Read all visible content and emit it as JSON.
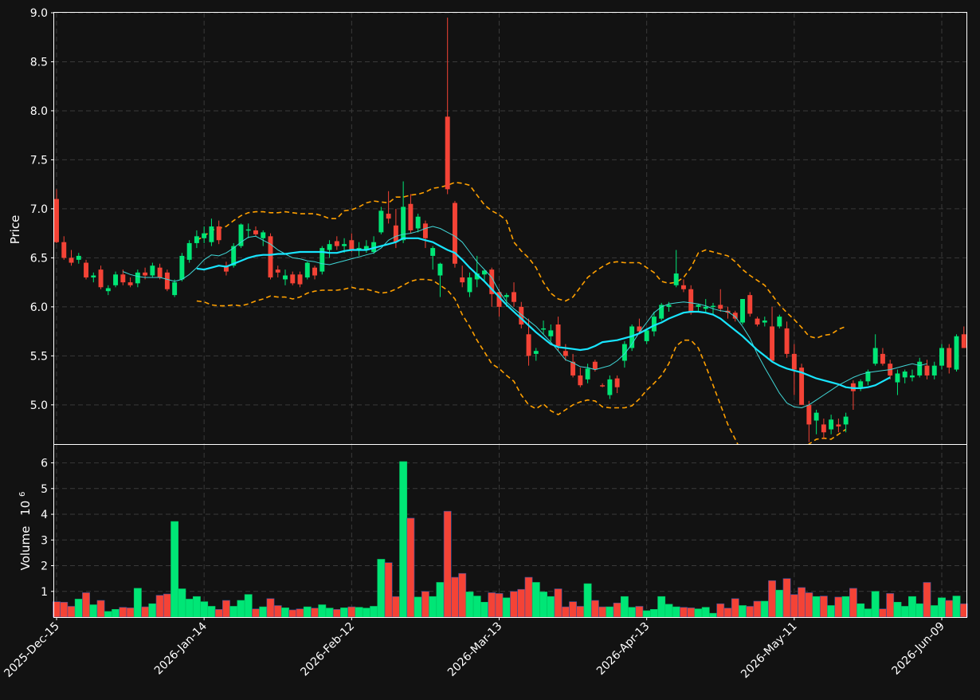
{
  "theme": {
    "background": "#121212",
    "panel_border": "#ffffff",
    "grid": "#3a3a3a",
    "up_color": "#00e676",
    "down_color": "#f44336",
    "ma_fast_color": "#40d6d6",
    "ma_slow_color": "#18e5ff",
    "band_color": "#ffa000"
  },
  "chart_data": {
    "type": "candlestick",
    "price_panel": {
      "ylabel": "Price",
      "ylim": [
        4.6,
        9.0
      ],
      "yticks": [
        "5.0",
        "5.5",
        "6.0",
        "6.5",
        "7.0",
        "7.5",
        "8.0",
        "8.5",
        "9.0"
      ],
      "grid": true
    },
    "volume_panel": {
      "ylabel": "Volume",
      "ylabel_exponent": "10",
      "ylabel_power": "6",
      "ylim": [
        0,
        6.7
      ],
      "yticks": [
        "1",
        "2",
        "3",
        "4",
        "5",
        "6"
      ],
      "unit_multiplier": 1000000,
      "grid": true
    },
    "x_axis": {
      "tick_labels": [
        "2025-Dec-15",
        "2026-Jan-14",
        "2026-Feb-12",
        "2026-Mar-13",
        "2026-Apr-13",
        "2026-May-11",
        "2026-Jun-09"
      ],
      "tick_indices": [
        0,
        20,
        40,
        60,
        80,
        100,
        120
      ]
    },
    "series_types": {
      "candles": "OHLC candlesticks (green = close above open, red = close below open)",
      "ma_fast": "thin cyan moving average",
      "ma_slow": "thick cyan moving average",
      "bands": "orange dashed upper and lower bands"
    },
    "ohlc": [
      [
        7.1,
        7.2,
        6.65,
        6.66
      ],
      [
        6.66,
        6.72,
        6.48,
        6.5
      ],
      [
        6.5,
        6.58,
        6.42,
        6.45
      ],
      [
        6.48,
        6.55,
        6.44,
        6.52
      ],
      [
        6.45,
        6.48,
        6.28,
        6.3
      ],
      [
        6.3,
        6.35,
        6.25,
        6.32
      ],
      [
        6.38,
        6.42,
        6.18,
        6.2
      ],
      [
        6.16,
        6.22,
        6.12,
        6.19
      ],
      [
        6.22,
        6.36,
        6.2,
        6.33
      ],
      [
        6.33,
        6.38,
        6.22,
        6.25
      ],
      [
        6.25,
        6.3,
        6.2,
        6.22
      ],
      [
        6.24,
        6.38,
        6.2,
        6.35
      ],
      [
        6.35,
        6.4,
        6.28,
        6.32
      ],
      [
        6.32,
        6.45,
        6.3,
        6.42
      ],
      [
        6.4,
        6.44,
        6.28,
        6.3
      ],
      [
        6.35,
        6.38,
        6.16,
        6.18
      ],
      [
        6.12,
        6.28,
        6.1,
        6.25
      ],
      [
        6.28,
        6.55,
        6.26,
        6.52
      ],
      [
        6.48,
        6.68,
        6.45,
        6.65
      ],
      [
        6.65,
        6.78,
        6.6,
        6.72
      ],
      [
        6.7,
        6.82,
        6.65,
        6.75
      ],
      [
        6.66,
        6.9,
        6.62,
        6.82
      ],
      [
        6.82,
        6.88,
        6.64,
        6.68
      ],
      [
        6.42,
        6.46,
        6.32,
        6.36
      ],
      [
        6.42,
        6.65,
        6.4,
        6.62
      ],
      [
        6.62,
        6.85,
        6.6,
        6.84
      ],
      [
        6.78,
        6.85,
        6.7,
        6.79
      ],
      [
        6.78,
        6.82,
        6.72,
        6.74
      ],
      [
        6.7,
        6.78,
        6.62,
        6.76
      ],
      [
        6.72,
        6.75,
        6.28,
        6.3
      ],
      [
        6.38,
        6.42,
        6.3,
        6.35
      ],
      [
        6.28,
        6.38,
        6.22,
        6.32
      ],
      [
        6.33,
        6.36,
        6.22,
        6.24
      ],
      [
        6.33,
        6.36,
        6.2,
        6.23
      ],
      [
        6.3,
        6.46,
        6.28,
        6.45
      ],
      [
        6.4,
        6.42,
        6.28,
        6.32
      ],
      [
        6.36,
        6.62,
        6.33,
        6.6
      ],
      [
        6.58,
        6.68,
        6.5,
        6.64
      ],
      [
        6.67,
        6.72,
        6.58,
        6.62
      ],
      [
        6.62,
        6.7,
        6.55,
        6.64
      ],
      [
        6.68,
        6.75,
        6.56,
        6.58
      ],
      [
        6.58,
        6.66,
        6.52,
        6.6
      ],
      [
        6.58,
        6.68,
        6.55,
        6.62
      ],
      [
        6.56,
        6.72,
        6.54,
        6.66
      ],
      [
        6.76,
        7.02,
        6.74,
        6.98
      ],
      [
        6.95,
        7.18,
        6.85,
        6.9
      ],
      [
        6.83,
        7.0,
        6.6,
        6.66
      ],
      [
        6.68,
        7.28,
        6.65,
        7.02
      ],
      [
        7.05,
        7.15,
        6.75,
        6.78
      ],
      [
        6.8,
        6.95,
        6.76,
        6.92
      ],
      [
        6.85,
        6.88,
        6.6,
        6.7
      ],
      [
        6.52,
        6.62,
        6.38,
        6.6
      ],
      [
        6.32,
        6.45,
        6.1,
        6.44
      ],
      [
        7.94,
        8.95,
        7.15,
        7.2
      ],
      [
        7.06,
        7.08,
        6.4,
        6.44
      ],
      [
        6.3,
        6.42,
        6.2,
        6.25
      ],
      [
        6.15,
        6.35,
        6.1,
        6.3
      ],
      [
        6.28,
        6.52,
        6.2,
        6.34
      ],
      [
        6.33,
        6.38,
        6.25,
        6.37
      ],
      [
        6.38,
        6.4,
        6.0,
        6.13
      ],
      [
        6.15,
        6.18,
        5.9,
        6.0
      ],
      [
        6.1,
        6.14,
        6.0,
        6.12
      ],
      [
        6.15,
        6.25,
        6.0,
        6.05
      ],
      [
        6.0,
        6.05,
        5.78,
        5.82
      ],
      [
        5.72,
        5.88,
        5.4,
        5.5
      ],
      [
        5.52,
        5.58,
        5.45,
        5.55
      ],
      [
        5.78,
        5.86,
        5.72,
        5.78
      ],
      [
        5.7,
        5.82,
        5.65,
        5.76
      ],
      [
        5.82,
        5.9,
        5.55,
        5.6
      ],
      [
        5.55,
        5.62,
        5.45,
        5.5
      ],
      [
        5.44,
        5.52,
        5.28,
        5.3
      ],
      [
        5.3,
        5.38,
        5.18,
        5.2
      ],
      [
        5.26,
        5.42,
        5.22,
        5.37
      ],
      [
        5.44,
        5.46,
        5.34,
        5.36
      ],
      [
        5.2,
        5.22,
        5.18,
        5.19
      ],
      [
        5.1,
        5.3,
        5.06,
        5.26
      ],
      [
        5.27,
        5.3,
        5.12,
        5.18
      ],
      [
        5.45,
        5.65,
        5.38,
        5.62
      ],
      [
        5.58,
        5.82,
        5.55,
        5.8
      ],
      [
        5.8,
        5.88,
        5.72,
        5.75
      ],
      [
        5.65,
        5.78,
        5.62,
        5.76
      ],
      [
        5.75,
        5.95,
        5.7,
        5.9
      ],
      [
        5.88,
        6.04,
        5.86,
        6.02
      ],
      [
        6.0,
        6.05,
        5.95,
        6.02
      ],
      [
        6.22,
        6.58,
        6.2,
        6.34
      ],
      [
        6.22,
        6.28,
        6.15,
        6.18
      ],
      [
        6.18,
        6.22,
        5.92,
        5.94
      ],
      [
        6.0,
        6.03,
        5.95,
        6.02
      ],
      [
        5.98,
        6.08,
        5.94,
        6.0
      ],
      [
        6.0,
        6.04,
        5.92,
        6.01
      ],
      [
        6.02,
        6.18,
        5.95,
        5.98
      ],
      [
        5.96,
        6.0,
        5.88,
        5.94
      ],
      [
        5.94,
        5.96,
        5.85,
        5.88
      ],
      [
        5.84,
        6.08,
        5.82,
        6.08
      ],
      [
        6.12,
        6.15,
        5.9,
        5.93
      ],
      [
        5.88,
        5.9,
        5.8,
        5.82
      ],
      [
        5.84,
        5.9,
        5.8,
        5.86
      ],
      [
        5.8,
        6.0,
        5.45,
        5.45
      ],
      [
        5.8,
        5.92,
        5.78,
        5.9
      ],
      [
        5.78,
        5.85,
        5.48,
        5.52
      ],
      [
        5.52,
        5.62,
        5.1,
        5.36
      ],
      [
        5.38,
        5.42,
        5.0,
        5.0
      ],
      [
        5.0,
        5.04,
        4.62,
        4.8
      ],
      [
        4.84,
        4.95,
        4.7,
        4.92
      ],
      [
        4.8,
        4.86,
        4.65,
        4.72
      ],
      [
        4.75,
        4.9,
        4.7,
        4.85
      ],
      [
        4.8,
        4.86,
        4.72,
        4.78
      ],
      [
        4.8,
        4.92,
        4.72,
        4.88
      ],
      [
        5.22,
        5.25,
        4.95,
        5.14
      ],
      [
        5.18,
        5.26,
        5.14,
        5.24
      ],
      [
        5.24,
        5.36,
        5.2,
        5.34
      ],
      [
        5.42,
        5.72,
        5.4,
        5.58
      ],
      [
        5.52,
        5.58,
        5.4,
        5.42
      ],
      [
        5.42,
        5.46,
        5.26,
        5.3
      ],
      [
        5.23,
        5.36,
        5.1,
        5.32
      ],
      [
        5.28,
        5.36,
        5.22,
        5.34
      ],
      [
        5.28,
        5.36,
        5.24,
        5.3
      ],
      [
        5.3,
        5.48,
        5.28,
        5.44
      ],
      [
        5.4,
        5.46,
        5.26,
        5.3
      ],
      [
        5.3,
        5.44,
        5.26,
        5.4
      ],
      [
        5.4,
        5.62,
        5.36,
        5.58
      ],
      [
        5.58,
        5.62,
        5.32,
        5.38
      ],
      [
        5.36,
        5.72,
        5.34,
        5.7
      ],
      [
        5.72,
        5.8,
        5.58,
        5.58
      ]
    ],
    "volume": [
      0.6,
      0.58,
      0.42,
      0.7,
      0.95,
      0.48,
      0.65,
      0.22,
      0.3,
      0.38,
      0.36,
      1.12,
      0.4,
      0.52,
      0.85,
      0.9,
      3.72,
      1.1,
      0.7,
      0.8,
      0.6,
      0.42,
      0.3,
      0.65,
      0.42,
      0.65,
      0.88,
      0.32,
      0.4,
      0.72,
      0.45,
      0.36,
      0.28,
      0.32,
      0.4,
      0.35,
      0.48,
      0.35,
      0.3,
      0.36,
      0.4,
      0.38,
      0.35,
      0.42,
      2.25,
      2.12,
      0.8,
      6.05,
      3.85,
      0.78,
      1.0,
      0.8,
      1.35,
      4.12,
      1.55,
      1.7,
      0.98,
      0.82,
      0.58,
      0.95,
      0.92,
      0.75,
      1.0,
      1.08,
      1.55,
      1.35,
      0.98,
      0.8,
      1.1,
      0.4,
      0.6,
      0.42,
      1.3,
      0.65,
      0.4,
      0.4,
      0.55,
      0.8,
      0.38,
      0.42,
      0.25,
      0.3,
      0.8,
      0.5,
      0.4,
      0.38,
      0.36,
      0.32,
      0.38,
      0.15,
      0.52,
      0.35,
      0.72,
      0.45,
      0.42,
      0.62,
      0.62,
      1.42,
      1.05,
      1.5,
      0.88,
      1.15,
      0.95,
      0.8,
      0.82,
      0.45,
      0.78,
      0.8,
      1.12,
      0.52,
      0.32,
      1.0,
      0.32,
      0.92,
      0.58,
      0.42,
      0.8,
      0.52,
      1.35,
      0.45,
      0.75,
      0.65,
      0.82,
      0.52
    ],
    "ma_fast": {
      "start_index": 9,
      "values": [
        6.36,
        6.33,
        6.31,
        6.3,
        6.3,
        6.3,
        6.28,
        6.26,
        6.28,
        6.33,
        6.4,
        6.48,
        6.53,
        6.52,
        6.55,
        6.6,
        6.66,
        6.71,
        6.72,
        6.68,
        6.64,
        6.58,
        6.54,
        6.5,
        6.49,
        6.47,
        6.46,
        6.44,
        6.43,
        6.45,
        6.47,
        6.49,
        6.51,
        6.53,
        6.55,
        6.6,
        6.68,
        6.72,
        6.74,
        6.75,
        6.77,
        6.8,
        6.82,
        6.8,
        6.76,
        6.72,
        6.66,
        6.56,
        6.46,
        6.38,
        6.3,
        6.16,
        6.05,
        5.98,
        5.92,
        5.86,
        5.8,
        5.72,
        5.64,
        5.55,
        5.46,
        5.43,
        5.39,
        5.38,
        5.36,
        5.38,
        5.4,
        5.45,
        5.52,
        5.62,
        5.74,
        5.84,
        5.94,
        6.0,
        6.03,
        6.04,
        6.05,
        6.04,
        6.03,
        6.01,
        5.98,
        5.96,
        5.95,
        5.9,
        5.8,
        5.68,
        5.52,
        5.38,
        5.25,
        5.12,
        5.02,
        4.98,
        4.97,
        5.0,
        5.05,
        5.1,
        5.15,
        5.2,
        5.24,
        5.28,
        5.31,
        5.33,
        5.34,
        5.35,
        5.36,
        5.38,
        5.4,
        5.42,
        5.4,
        5.42
      ]
    },
    "ma_slow": {
      "start_index": 19,
      "values": [
        6.39,
        6.38,
        6.4,
        6.42,
        6.41,
        6.44,
        6.47,
        6.5,
        6.52,
        6.53,
        6.53,
        6.54,
        6.54,
        6.55,
        6.56,
        6.56,
        6.56,
        6.56,
        6.55,
        6.55,
        6.57,
        6.58,
        6.58,
        6.58,
        6.6,
        6.62,
        6.64,
        6.66,
        6.7,
        6.7,
        6.7,
        6.68,
        6.66,
        6.62,
        6.58,
        6.55,
        6.48,
        6.4,
        6.33,
        6.26,
        6.18,
        6.1,
        6.02,
        5.95,
        5.88,
        5.81,
        5.74,
        5.68,
        5.62,
        5.59,
        5.58,
        5.57,
        5.56,
        5.57,
        5.6,
        5.64,
        5.65,
        5.66,
        5.68,
        5.7,
        5.73,
        5.77,
        5.81,
        5.84,
        5.88,
        5.91,
        5.94,
        5.95,
        5.95,
        5.94,
        5.92,
        5.88,
        5.82,
        5.76,
        5.7,
        5.63,
        5.56,
        5.5,
        5.44,
        5.4,
        5.37,
        5.35,
        5.33,
        5.3,
        5.27,
        5.25,
        5.23,
        5.21,
        5.18,
        5.17,
        5.17,
        5.18,
        5.2,
        5.24,
        5.28
      ]
    },
    "upper_band": {
      "start_index": 19,
      "values": [
        6.68,
        6.72,
        6.78,
        6.8,
        6.82,
        6.88,
        6.93,
        6.96,
        6.97,
        6.97,
        6.96,
        6.96,
        6.97,
        6.96,
        6.95,
        6.95,
        6.95,
        6.93,
        6.9,
        6.9,
        6.98,
        6.99,
        7.02,
        7.06,
        7.08,
        7.07,
        7.06,
        7.12,
        7.12,
        7.14,
        7.15,
        7.17,
        7.21,
        7.22,
        7.24,
        7.27,
        7.26,
        7.24,
        7.14,
        7.04,
        6.98,
        6.94,
        6.88,
        6.66,
        6.57,
        6.5,
        6.4,
        6.25,
        6.14,
        6.08,
        6.06,
        6.1,
        6.2,
        6.3,
        6.36,
        6.41,
        6.45,
        6.46,
        6.45,
        6.45,
        6.45,
        6.4,
        6.35,
        6.26,
        6.24,
        6.25,
        6.3,
        6.4,
        6.55,
        6.58,
        6.56,
        6.54,
        6.52,
        6.46,
        6.38,
        6.32,
        6.27,
        6.22,
        6.12,
        6.02,
        5.94,
        5.87,
        5.79,
        5.7,
        5.68,
        5.71,
        5.72,
        5.77,
        5.8
      ]
    },
    "lower_band": {
      "start_index": 19,
      "values": [
        6.06,
        6.05,
        6.02,
        6.01,
        6.01,
        6.02,
        6.01,
        6.03,
        6.06,
        6.08,
        6.11,
        6.1,
        6.1,
        6.08,
        6.1,
        6.14,
        6.16,
        6.17,
        6.17,
        6.17,
        6.18,
        6.2,
        6.18,
        6.18,
        6.16,
        6.14,
        6.15,
        6.18,
        6.22,
        6.26,
        6.28,
        6.28,
        6.27,
        6.22,
        6.17,
        6.08,
        5.92,
        5.8,
        5.66,
        5.54,
        5.42,
        5.37,
        5.3,
        5.24,
        5.1,
        5.0,
        4.96,
        5.01,
        4.94,
        4.9,
        4.95,
        5.0,
        5.03,
        5.05,
        5.04,
        4.98,
        4.97,
        4.97,
        4.97,
        4.99,
        5.06,
        5.15,
        5.22,
        5.3,
        5.42,
        5.6,
        5.66,
        5.66,
        5.58,
        5.4,
        5.2,
        5.0,
        4.8,
        4.65,
        4.5,
        4.38,
        4.28,
        4.2,
        4.18,
        4.22,
        4.3,
        4.4,
        4.52,
        4.6,
        4.65,
        4.66,
        4.65,
        4.7,
        4.75
      ]
    }
  }
}
